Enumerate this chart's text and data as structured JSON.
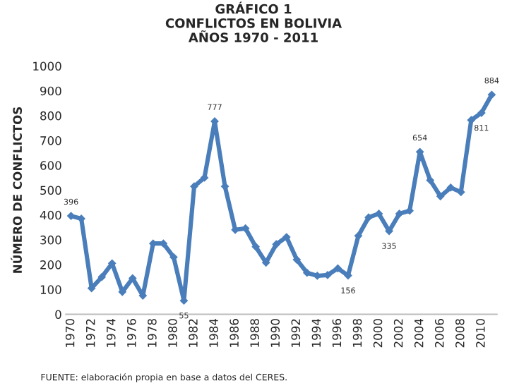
{
  "chart_data": {
    "type": "line",
    "title": "GRÁFICO 1\nCONFLICTOS EN BOLIVIA\nAÑOS 1970 - 2011",
    "ylabel": "NÚMERO DE CONFLICTOS",
    "annotations": [
      "FUENTE: elaboración propia en base a datos del CERES."
    ],
    "x": [
      1970,
      1971,
      1972,
      1973,
      1974,
      1975,
      1976,
      1977,
      1978,
      1979,
      1980,
      1981,
      1982,
      1983,
      1984,
      1985,
      1986,
      1987,
      1988,
      1989,
      1990,
      1991,
      1992,
      1993,
      1994,
      1995,
      1996,
      1997,
      1998,
      1999,
      2000,
      2001,
      2002,
      2003,
      2004,
      2005,
      2006,
      2007,
      2008,
      2009,
      2010,
      2011
    ],
    "series": [
      {
        "color": "#4a7ebb",
        "values": [
          396,
          385,
          105,
          150,
          205,
          90,
          145,
          75,
          285,
          285,
          230,
          55,
          515,
          550,
          777,
          515,
          340,
          346,
          272,
          208,
          282,
          311,
          220,
          167,
          155,
          158,
          185,
          156,
          316,
          390,
          405,
          335,
          405,
          417,
          654,
          540,
          475,
          510,
          492,
          782,
          811,
          884
        ],
        "value_labels": [
          "396",
          null,
          null,
          null,
          null,
          null,
          null,
          null,
          null,
          null,
          null,
          "55",
          null,
          null,
          "777",
          null,
          null,
          null,
          null,
          null,
          null,
          null,
          null,
          null,
          null,
          null,
          null,
          "156",
          null,
          null,
          null,
          "335",
          null,
          null,
          "654",
          null,
          null,
          null,
          null,
          null,
          "811",
          "884"
        ]
      }
    ],
    "xlim": [
      1969.5,
      2011.5
    ],
    "xticks": [
      1970,
      1972,
      1974,
      1976,
      1978,
      1980,
      1982,
      1984,
      1986,
      1988,
      1990,
      1992,
      1994,
      1996,
      1998,
      2000,
      2002,
      2004,
      2006,
      2008,
      2010
    ],
    "ylim": [
      0,
      1000
    ],
    "yticks": [
      0,
      100,
      200,
      300,
      400,
      500,
      600,
      700,
      800,
      900,
      1000
    ],
    "grid": false,
    "legend": false,
    "marker": "diamond",
    "line_style": "solid"
  }
}
